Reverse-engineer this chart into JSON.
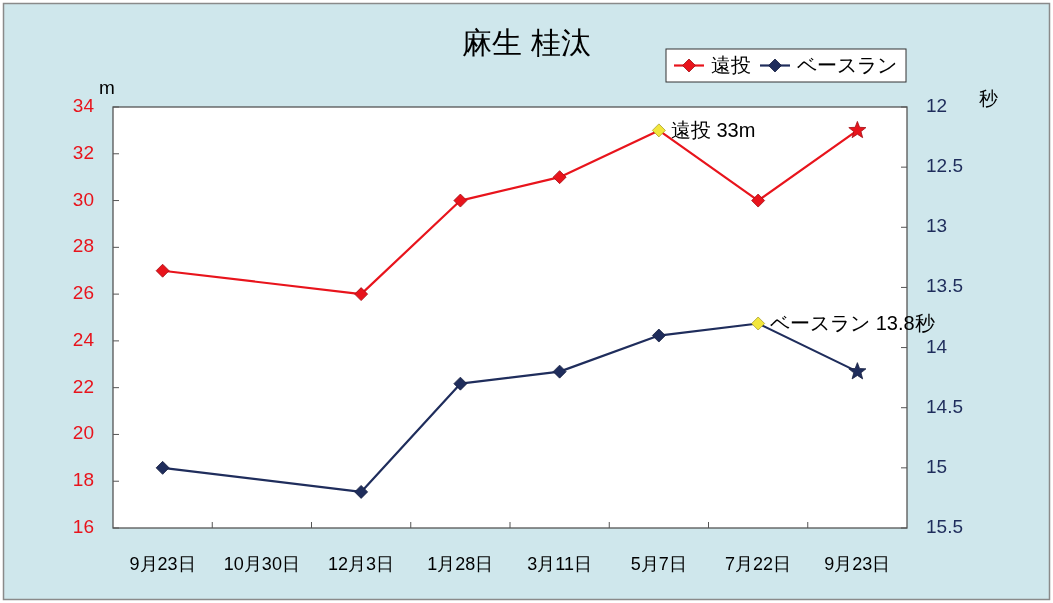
{
  "chart_data": {
    "type": "line",
    "title": "麻生 桂汰",
    "ylabel": "m",
    "y2label": "秒",
    "categories": [
      "9月23日",
      "10月30日",
      "12月3日",
      "1月28日",
      "3月11日",
      "5月7日",
      "7月22日",
      "9月23日"
    ],
    "series": [
      {
        "name": "遠投",
        "color": "#e8141c",
        "marker": "diamond",
        "values": [
          27,
          null,
          26,
          30,
          31,
          33,
          30,
          33
        ],
        "colors": [
          "#e8141c",
          null,
          "#e8141c",
          "#e8141c",
          "#e8141c",
          "#f2e63c",
          "#e8141c",
          null
        ],
        "value_labels": [
          null,
          null,
          null,
          null,
          null,
          "遠投 33m",
          null,
          null
        ]
      },
      {
        "name": "ベースラン",
        "axis": "y2",
        "color": "#1f2d5c",
        "marker": "diamond",
        "values": [
          15.0,
          null,
          15.2,
          14.3,
          14.2,
          13.9,
          13.8,
          14.2
        ],
        "colors": [
          "#1f2d5c",
          null,
          "#1f2d5c",
          "#1f2d5c",
          "#1f2d5c",
          "#1f2d5c",
          "#f2e63c",
          null
        ],
        "value_labels": [
          null,
          null,
          null,
          null,
          null,
          null,
          "ベースラン 13.8秒",
          null
        ]
      },
      {
        "type": "scatter",
        "color": "#e8141c",
        "marker": "star",
        "values": [
          null,
          null,
          null,
          null,
          null,
          null,
          null,
          33
        ]
      },
      {
        "type": "scatter",
        "axis": "y2",
        "color": "#1f2d5c",
        "marker": "star",
        "values": [
          null,
          null,
          null,
          null,
          null,
          null,
          null,
          14.2
        ]
      }
    ],
    "ylim": [
      16,
      34
    ],
    "yticks": [
      16,
      18,
      20,
      22,
      24,
      26,
      28,
      30,
      32,
      34
    ],
    "y2lim": [
      15.5,
      12
    ],
    "y2ticks": [
      12,
      12.5,
      13,
      13.5,
      14,
      14.5,
      15,
      15.5
    ],
    "legend": "top right",
    "line_style": "solid"
  }
}
